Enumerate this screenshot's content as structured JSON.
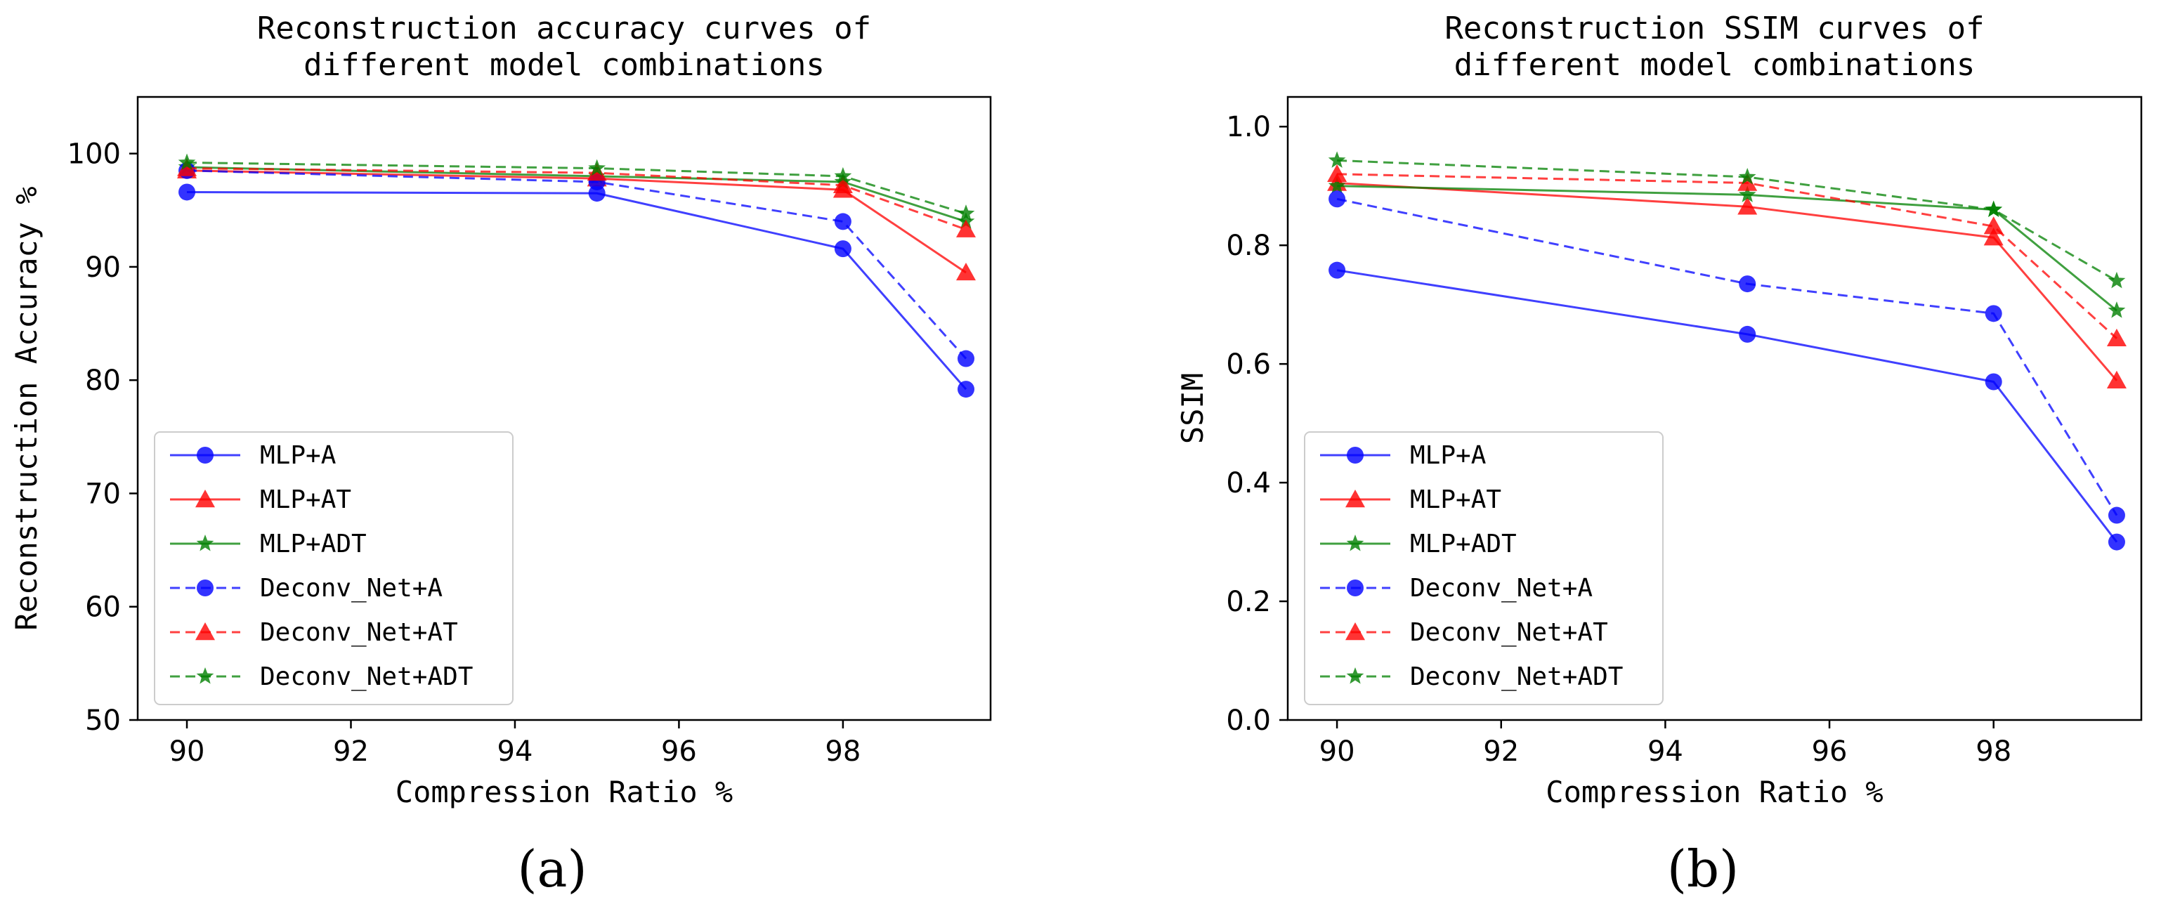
{
  "chart_data": [
    {
      "type": "line",
      "title_lines": [
        "Reconstruction accuracy curves of",
        "different model combinations"
      ],
      "xlabel": "Compression Ratio %",
      "ylabel": "Reconstruction Accuracy %",
      "xlim": [
        89.4,
        99.8
      ],
      "ylim": [
        50,
        105
      ],
      "xticks": [
        90,
        92,
        94,
        96,
        98
      ],
      "yticks": [
        50,
        60,
        70,
        80,
        90,
        100
      ],
      "x": [
        90,
        95,
        98,
        99.5
      ],
      "caption": "(a)",
      "legend_position": "lower-left",
      "series": [
        {
          "name": "MLP+A",
          "color": "#0000ff",
          "dash": "solid",
          "marker": "circle",
          "values": [
            96.6,
            96.5,
            91.6,
            79.2
          ]
        },
        {
          "name": "MLP+AT",
          "color": "#ff0000",
          "dash": "solid",
          "marker": "triangle",
          "values": [
            98.5,
            97.8,
            96.8,
            89.5
          ]
        },
        {
          "name": "MLP+ADT",
          "color": "#008000",
          "dash": "solid",
          "marker": "star",
          "values": [
            98.8,
            98.0,
            97.5,
            94.0
          ]
        },
        {
          "name": "Deconv_Net+A",
          "color": "#0000ff",
          "dash": "dashed",
          "marker": "circle",
          "values": [
            98.5,
            97.5,
            94.0,
            81.9
          ]
        },
        {
          "name": "Deconv_Net+AT",
          "color": "#ff0000",
          "dash": "dashed",
          "marker": "triangle",
          "values": [
            98.7,
            98.3,
            97.2,
            93.3
          ]
        },
        {
          "name": "Deconv_Net+ADT",
          "color": "#008000",
          "dash": "dashed",
          "marker": "star",
          "values": [
            99.2,
            98.7,
            98.0,
            94.7
          ]
        }
      ]
    },
    {
      "type": "line",
      "title_lines": [
        "Reconstruction SSIM curves of",
        "different model combinations"
      ],
      "xlabel": "Compression Ratio %",
      "ylabel": "SSIM",
      "xlim": [
        89.4,
        99.8
      ],
      "ylim": [
        0,
        1.05
      ],
      "xticks": [
        90,
        92,
        94,
        96,
        98
      ],
      "yticks": [
        0.0,
        0.2,
        0.4,
        0.6,
        0.8,
        1.0
      ],
      "ytick_labels": [
        "0.0",
        "0.2",
        "0.4",
        "0.6",
        "0.8",
        "1.0"
      ],
      "x": [
        90,
        95,
        98,
        99.5
      ],
      "caption": "(b)",
      "legend_position": "lower-left",
      "series": [
        {
          "name": "MLP+A",
          "color": "#0000ff",
          "dash": "solid",
          "marker": "circle",
          "values": [
            0.758,
            0.65,
            0.57,
            0.3
          ]
        },
        {
          "name": "MLP+AT",
          "color": "#ff0000",
          "dash": "solid",
          "marker": "triangle",
          "values": [
            0.905,
            0.865,
            0.813,
            0.572
          ]
        },
        {
          "name": "MLP+ADT",
          "color": "#008000",
          "dash": "solid",
          "marker": "star",
          "values": [
            0.9,
            0.885,
            0.86,
            0.69
          ]
        },
        {
          "name": "Deconv_Net+A",
          "color": "#0000ff",
          "dash": "dashed",
          "marker": "circle",
          "values": [
            0.878,
            0.735,
            0.685,
            0.345
          ]
        },
        {
          "name": "Deconv_Net+AT",
          "color": "#ff0000",
          "dash": "dashed",
          "marker": "triangle",
          "values": [
            0.92,
            0.905,
            0.832,
            0.643
          ]
        },
        {
          "name": "Deconv_Net+ADT",
          "color": "#008000",
          "dash": "dashed",
          "marker": "star",
          "values": [
            0.943,
            0.915,
            0.86,
            0.74
          ]
        }
      ]
    }
  ]
}
